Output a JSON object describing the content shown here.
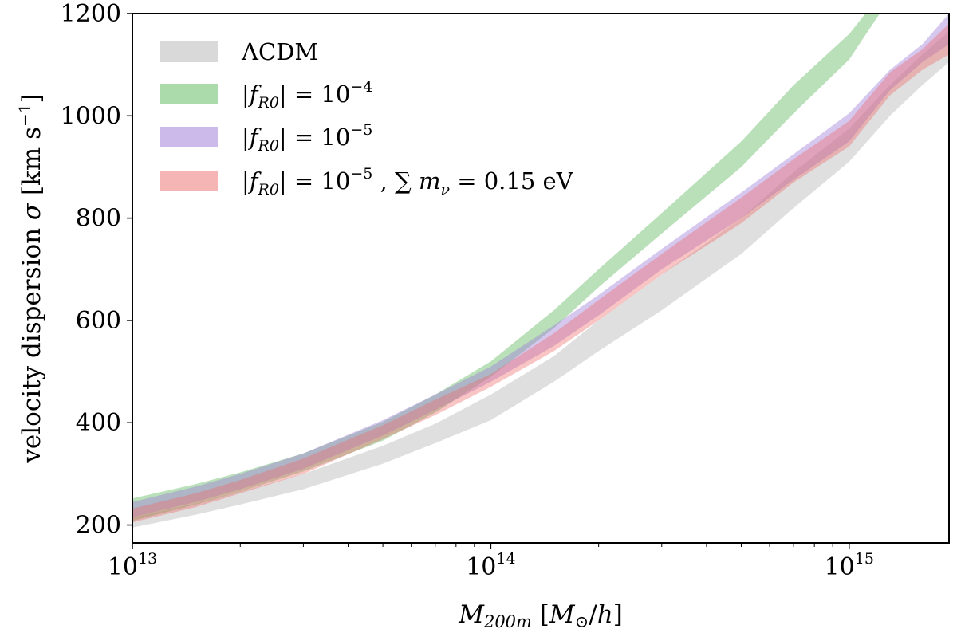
{
  "chart_data": {
    "type": "area",
    "title": "",
    "xlabel": "M200m [M⊙/h]",
    "ylabel": "velocity dispersion σ [km s⁻¹]",
    "xscale": "log",
    "xlim": [
      10000000000000.0,
      1900000000000000.0
    ],
    "ylim": [
      165,
      1200
    ],
    "x_ticks": [
      {
        "value": 10000000000000.0,
        "base": "10",
        "exp": "13"
      },
      {
        "value": 100000000000000.0,
        "base": "10",
        "exp": "14"
      },
      {
        "value": 1000000000000000.0,
        "base": "10",
        "exp": "15"
      }
    ],
    "y_ticks": [
      {
        "value": 200,
        "label": "200"
      },
      {
        "value": 400,
        "label": "400"
      },
      {
        "value": 600,
        "label": "600"
      },
      {
        "value": 800,
        "label": "800"
      },
      {
        "value": 1000,
        "label": "1000"
      },
      {
        "value": 1200,
        "label": "1200"
      }
    ],
    "grid": false,
    "legend_position": "top-left",
    "x": [
      10000000000000.0,
      15000000000000.0,
      20000000000000.0,
      30000000000000.0,
      50000000000000.0,
      70000000000000.0,
      100000000000000.0,
      150000000000000.0,
      200000000000000.0,
      300000000000000.0,
      500000000000000.0,
      700000000000000.0,
      1000000000000000.0,
      1300000000000000.0,
      1600000000000000.0,
      1900000000000000.0
    ],
    "series": [
      {
        "name": "ΛCDM",
        "color": "#bfbfbf",
        "opacity": 0.5,
        "lower": [
          195,
          220,
          240,
          270,
          320,
          360,
          405,
          480,
          540,
          620,
          730,
          820,
          910,
          1000,
          1060,
          1105
        ],
        "upper": [
          215,
          242,
          265,
          300,
          355,
          398,
          455,
          530,
          600,
          690,
          800,
          890,
          975,
          1060,
          1120,
          1165
        ]
      },
      {
        "name": "|fR0| = 10^-4",
        "color": "#66bb66",
        "opacity": 0.45,
        "lower": [
          208,
          240,
          265,
          305,
          365,
          420,
          490,
          585,
          665,
          770,
          900,
          1005,
          1110,
          1230,
          1300,
          1300
        ],
        "upper": [
          252,
          280,
          303,
          340,
          402,
          455,
          520,
          620,
          700,
          810,
          950,
          1060,
          1160,
          1260,
          1300,
          1300
        ]
      },
      {
        "name": "|fR0| = 10^-5",
        "color": "#9b7ad6",
        "opacity": 0.42,
        "lower": [
          215,
          245,
          270,
          310,
          375,
          425,
          480,
          550,
          610,
          700,
          800,
          875,
          950,
          1050,
          1105,
          1140
        ],
        "upper": [
          245,
          275,
          300,
          340,
          405,
          455,
          510,
          590,
          650,
          740,
          850,
          925,
          1005,
          1090,
          1140,
          1200
        ]
      },
      {
        "name": "|fR0| = 10^-5 , Σ mν = 0.15 eV",
        "color": "#ee6b6b",
        "opacity": 0.4,
        "lower": [
          205,
          235,
          262,
          300,
          368,
          415,
          470,
          540,
          600,
          690,
          790,
          870,
          940,
          1040,
          1090,
          1120
        ],
        "upper": [
          232,
          262,
          288,
          330,
          395,
          445,
          495,
          575,
          640,
          730,
          840,
          915,
          990,
          1085,
          1130,
          1180
        ]
      }
    ]
  },
  "legend": {
    "items": [
      {
        "parts": [
          {
            "t": "ΛCDM",
            "i": false
          }
        ]
      },
      {
        "parts": [
          {
            "t": "|",
            "i": false
          },
          {
            "t": "f",
            "i": true
          },
          {
            "t": "R0",
            "i": true,
            "sub": true
          },
          {
            "t": "| = 10",
            "i": false
          },
          {
            "t": "−4",
            "i": false,
            "sup": true
          }
        ]
      },
      {
        "parts": [
          {
            "t": "|",
            "i": false
          },
          {
            "t": "f",
            "i": true
          },
          {
            "t": "R0",
            "i": true,
            "sub": true
          },
          {
            "t": "| = 10",
            "i": false
          },
          {
            "t": "−5",
            "i": false,
            "sup": true
          }
        ]
      },
      {
        "parts": [
          {
            "t": "|",
            "i": false
          },
          {
            "t": "f",
            "i": true
          },
          {
            "t": "R0",
            "i": true,
            "sub": true
          },
          {
            "t": "| = 10",
            "i": false
          },
          {
            "t": "−5",
            "i": false,
            "sup": true
          },
          {
            "t": " , ∑ ",
            "i": false
          },
          {
            "t": "m",
            "i": true
          },
          {
            "t": "ν",
            "i": true,
            "sub": true
          },
          {
            "t": " = 0.15 eV",
            "i": false
          }
        ]
      }
    ]
  }
}
